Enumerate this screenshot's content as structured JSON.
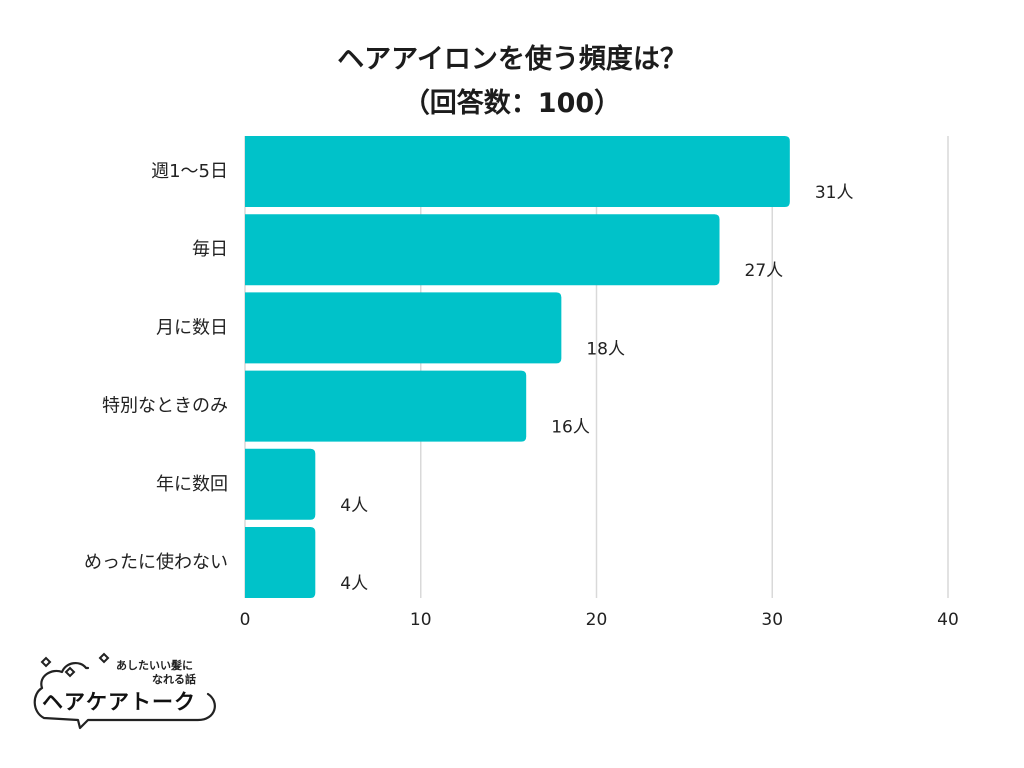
{
  "chart_data": {
    "type": "bar",
    "orientation": "horizontal",
    "title": "ヘアアイロンを使う頻度は？",
    "subtitle": "（回答数：100）",
    "categories": [
      "週1〜5日",
      "毎日",
      "月に数日",
      "特別なときのみ",
      "年に数回",
      "めったに使わない"
    ],
    "values": [
      31,
      27,
      18,
      16,
      4,
      4
    ],
    "value_labels": [
      "31人",
      "27人",
      "18人",
      "16人",
      "4人",
      "4人"
    ],
    "xlim": [
      0,
      40
    ],
    "xticks": [
      0,
      10,
      20,
      30,
      40
    ],
    "grid": true,
    "bar_color": "#00c2c9",
    "grid_color": "#d9d9d9"
  },
  "logo": {
    "tagline_1": "あしたいい髪に",
    "tagline_2": "なれる話",
    "brand": "ヘアケアトーク"
  }
}
